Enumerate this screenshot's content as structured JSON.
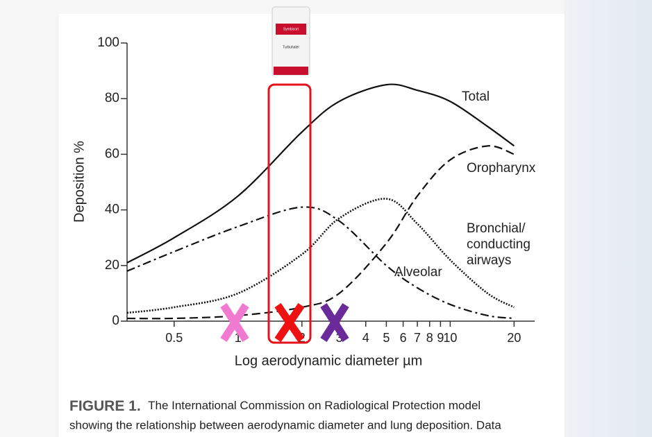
{
  "chart_data": {
    "type": "line",
    "xlabel": "Log aerodynamic diameter µm",
    "ylabel": "Deposition %",
    "x": [
      0.3,
      0.5,
      1,
      2,
      3,
      5,
      7,
      10,
      15,
      20
    ],
    "xscale": "log",
    "xlim": [
      0.3,
      25
    ],
    "xticks": [
      0.5,
      1,
      2,
      3,
      4,
      5,
      6,
      7,
      8,
      9,
      10,
      20
    ],
    "ylim": [
      0,
      100
    ],
    "yticks": [
      0,
      20,
      40,
      60,
      80,
      100
    ],
    "series": [
      {
        "name": "Total",
        "color": "#111111",
        "style": "solid",
        "values": [
          21,
          30,
          45,
          68,
          79,
          85,
          83,
          79,
          70,
          63
        ]
      },
      {
        "name": "Oropharynx",
        "color": "#111111",
        "style": "dashed",
        "values": [
          1,
          1,
          2,
          5,
          10,
          28,
          45,
          58,
          63,
          60
        ]
      },
      {
        "name": "Bronchial/ conducting airways",
        "color": "#111111",
        "style": "dotted",
        "values": [
          3,
          5,
          10,
          24,
          37,
          44,
          35,
          22,
          10,
          5
        ]
      },
      {
        "name": "Alveolar",
        "color": "#111111",
        "style": "dashdot",
        "values": [
          18,
          25,
          34,
          41,
          36,
          20,
          12,
          6,
          2,
          1
        ]
      }
    ],
    "inhaler": {
      "brand": "Symbicort",
      "device": "Turbuhaler"
    },
    "caption": {
      "label": "FIGURE 1.",
      "lines": [
        "The International Commission on Radiological Protection model",
        "showing the relationship between aerodynamic diameter and lung deposition. Data"
      ]
    }
  }
}
